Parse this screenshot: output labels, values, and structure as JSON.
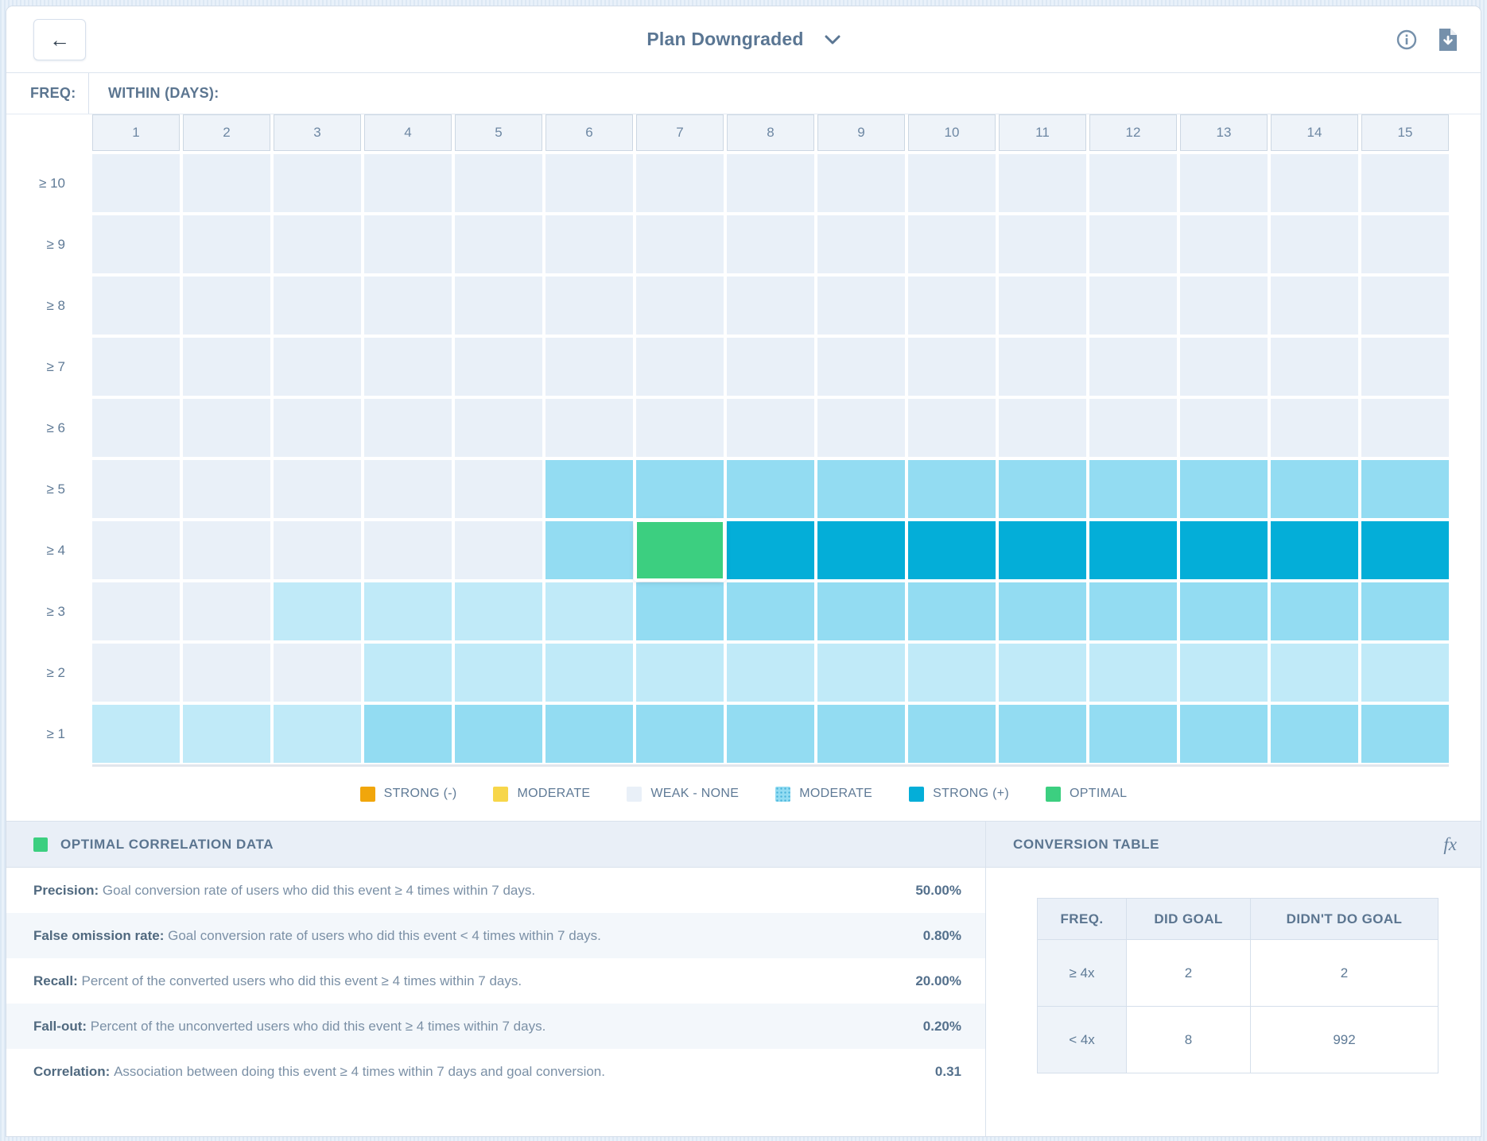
{
  "topbar": {
    "title": "Plan Downgraded",
    "back_label": "←",
    "icons": [
      "info-icon",
      "download-icon"
    ]
  },
  "heatmap": {
    "freq_label": "FREQ:",
    "within_label": "WITHIN (DAYS):",
    "columns": [
      "1",
      "2",
      "3",
      "4",
      "5",
      "6",
      "7",
      "8",
      "9",
      "10",
      "11",
      "12",
      "13",
      "14",
      "15"
    ],
    "rows": [
      {
        "label": "≥ 10",
        "cells": [
          "w",
          "w",
          "w",
          "w",
          "w",
          "w",
          "w",
          "w",
          "w",
          "w",
          "w",
          "w",
          "w",
          "w",
          "w"
        ]
      },
      {
        "label": "≥ 9",
        "cells": [
          "w",
          "w",
          "w",
          "w",
          "w",
          "w",
          "w",
          "w",
          "w",
          "w",
          "w",
          "w",
          "w",
          "w",
          "w"
        ]
      },
      {
        "label": "≥ 8",
        "cells": [
          "w",
          "w",
          "w",
          "w",
          "w",
          "w",
          "w",
          "w",
          "w",
          "w",
          "w",
          "w",
          "w",
          "w",
          "w"
        ]
      },
      {
        "label": "≥ 7",
        "cells": [
          "w",
          "w",
          "w",
          "w",
          "w",
          "w",
          "w",
          "w",
          "w",
          "w",
          "w",
          "w",
          "w",
          "w",
          "w"
        ]
      },
      {
        "label": "≥ 6",
        "cells": [
          "w",
          "w",
          "w",
          "w",
          "w",
          "w",
          "w",
          "w",
          "w",
          "w",
          "w",
          "w",
          "w",
          "w",
          "w"
        ]
      },
      {
        "label": "≥ 5",
        "cells": [
          "w",
          "w",
          "w",
          "w",
          "w",
          "m",
          "m",
          "m",
          "m",
          "m",
          "m",
          "m",
          "m",
          "m",
          "m"
        ]
      },
      {
        "label": "≥ 4",
        "cells": [
          "w",
          "w",
          "w",
          "w",
          "w",
          "m",
          "o",
          "s",
          "s",
          "s",
          "s",
          "s",
          "s",
          "s",
          "s"
        ]
      },
      {
        "label": "≥ 3",
        "cells": [
          "w",
          "w",
          "l",
          "l",
          "l",
          "l",
          "m",
          "m",
          "m",
          "m",
          "m",
          "m",
          "m",
          "m",
          "m"
        ]
      },
      {
        "label": "≥ 2",
        "cells": [
          "w",
          "w",
          "w",
          "l",
          "l",
          "l",
          "l",
          "l",
          "l",
          "l",
          "l",
          "l",
          "l",
          "l",
          "l"
        ]
      },
      {
        "label": "≥ 1",
        "cells": [
          "l",
          "l",
          "l",
          "m",
          "m",
          "m",
          "m",
          "m",
          "m",
          "m",
          "m",
          "m",
          "m",
          "m",
          "m"
        ]
      }
    ],
    "selected_cell": {
      "row_label": "≥ 4",
      "column": "7"
    },
    "palette": {
      "w": "#e9f0f8",
      "l": "#c0eaf8",
      "m": "#93dcf2",
      "s": "#04aed8",
      "o": "#3ccf80",
      "strong_negative": "#f1a60b",
      "moderate_negative": "#f7d64a"
    }
  },
  "legend": [
    {
      "label": "STRONG (-)",
      "swatch": "strong_negative"
    },
    {
      "label": "MODERATE",
      "swatch": "moderate_negative"
    },
    {
      "label": "WEAK - NONE",
      "swatch": "w"
    },
    {
      "label": "MODERATE",
      "swatch": "texture"
    },
    {
      "label": "STRONG (+)",
      "swatch": "s"
    },
    {
      "label": "OPTIMAL",
      "swatch": "o"
    }
  ],
  "optimal_panel": {
    "title": "OPTIMAL CORRELATION DATA",
    "metrics": [
      {
        "name": "Precision:",
        "desc": "Goal conversion rate of users who did this event ≥ 4 times within 7 days.",
        "value": "50.00%"
      },
      {
        "name": "False omission rate:",
        "desc": "Goal conversion rate of users who did this event < 4 times within 7 days.",
        "value": "0.80%"
      },
      {
        "name": "Recall:",
        "desc": "Percent of the converted users who did this event ≥ 4 times within 7 days.",
        "value": "20.00%"
      },
      {
        "name": "Fall-out:",
        "desc": "Percent of the unconverted users who did this event ≥ 4 times within 7 days.",
        "value": "0.20%"
      },
      {
        "name": "Correlation:",
        "desc": "Association between doing this event ≥ 4 times within 7 days and goal conversion.",
        "value": "0.31"
      }
    ]
  },
  "conversion": {
    "title": "CONVERSION TABLE",
    "fx_label": "fx",
    "headers": [
      "FREQ.",
      "DID GOAL",
      "DIDN'T DO GOAL"
    ],
    "rows": [
      {
        "freq": "≥ 4x",
        "did": "2",
        "didnt": "2"
      },
      {
        "freq": "< 4x",
        "did": "8",
        "didnt": "992"
      }
    ]
  },
  "chart_data": {
    "type": "heatmap",
    "title": "Plan Downgraded correlation heatmap",
    "xlabel": "WITHIN (DAYS):",
    "ylabel": "FREQ:",
    "x": [
      "1",
      "2",
      "3",
      "4",
      "5",
      "6",
      "7",
      "8",
      "9",
      "10",
      "11",
      "12",
      "13",
      "14",
      "15"
    ],
    "y": [
      "≥ 10",
      "≥ 9",
      "≥ 8",
      "≥ 7",
      "≥ 6",
      "≥ 5",
      "≥ 4",
      "≥ 3",
      "≥ 2",
      "≥ 1"
    ],
    "legend_position": "bottom",
    "classes": {
      "w": "weak-none",
      "l": "moderate-low",
      "m": "moderate",
      "s": "strong-positive",
      "o": "optimal"
    },
    "values": [
      [
        "w",
        "w",
        "w",
        "w",
        "w",
        "w",
        "w",
        "w",
        "w",
        "w",
        "w",
        "w",
        "w",
        "w",
        "w"
      ],
      [
        "w",
        "w",
        "w",
        "w",
        "w",
        "w",
        "w",
        "w",
        "w",
        "w",
        "w",
        "w",
        "w",
        "w",
        "w"
      ],
      [
        "w",
        "w",
        "w",
        "w",
        "w",
        "w",
        "w",
        "w",
        "w",
        "w",
        "w",
        "w",
        "w",
        "w",
        "w"
      ],
      [
        "w",
        "w",
        "w",
        "w",
        "w",
        "w",
        "w",
        "w",
        "w",
        "w",
        "w",
        "w",
        "w",
        "w",
        "w"
      ],
      [
        "w",
        "w",
        "w",
        "w",
        "w",
        "w",
        "w",
        "w",
        "w",
        "w",
        "w",
        "w",
        "w",
        "w",
        "w"
      ],
      [
        "w",
        "w",
        "w",
        "w",
        "w",
        "m",
        "m",
        "m",
        "m",
        "m",
        "m",
        "m",
        "m",
        "m",
        "m"
      ],
      [
        "w",
        "w",
        "w",
        "w",
        "w",
        "m",
        "o",
        "s",
        "s",
        "s",
        "s",
        "s",
        "s",
        "s",
        "s"
      ],
      [
        "w",
        "w",
        "l",
        "l",
        "l",
        "l",
        "m",
        "m",
        "m",
        "m",
        "m",
        "m",
        "m",
        "m",
        "m"
      ],
      [
        "w",
        "w",
        "w",
        "l",
        "l",
        "l",
        "l",
        "l",
        "l",
        "l",
        "l",
        "l",
        "l",
        "l",
        "l"
      ],
      [
        "l",
        "l",
        "l",
        "m",
        "m",
        "m",
        "m",
        "m",
        "m",
        "m",
        "m",
        "m",
        "m",
        "m",
        "m"
      ]
    ]
  }
}
